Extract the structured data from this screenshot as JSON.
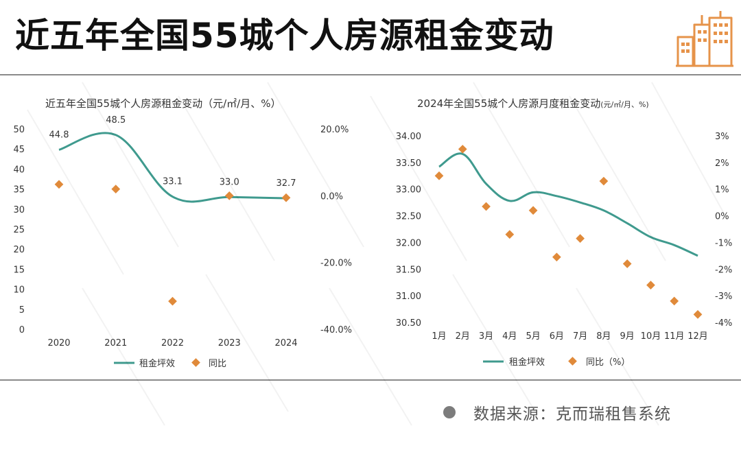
{
  "header": {
    "title": "近五年全国55城个人房源租金变动",
    "icon": "building-icon"
  },
  "colors": {
    "line": "#3f9a8e",
    "marker": "#e08a3a",
    "axis_text": "#333333",
    "icon": "#e6934a"
  },
  "chart_data": [
    {
      "type": "line",
      "title": "近五年全国55城个人房源租金变动（元/㎡/月、%）",
      "categories": [
        "2020",
        "2021",
        "2022",
        "2023",
        "2024"
      ],
      "series": [
        {
          "name": "租金坪效",
          "axis": "left",
          "values": [
            44.8,
            48.5,
            33.1,
            33.0,
            32.7
          ],
          "labels": [
            "44.8",
            "48.5",
            "33.1",
            "33.0",
            "32.7"
          ]
        },
        {
          "name": "同比",
          "axis": "right",
          "style": "marker",
          "values": [
            3.4,
            2.0,
            -31.6,
            0.0,
            -0.6
          ]
        }
      ],
      "ylim": [
        0,
        50
      ],
      "y_ticks": [
        "50",
        "45",
        "40",
        "35",
        "30",
        "25",
        "20",
        "15",
        "10",
        "5",
        "0"
      ],
      "y2lim": [
        -40,
        20
      ],
      "y2_ticks": [
        "20.0%",
        "0.0%",
        "-20.0%",
        "-40.0%"
      ],
      "legend": {
        "position": "bottom",
        "items": [
          "租金坪效",
          "同比"
        ]
      },
      "grid": false
    },
    {
      "type": "line",
      "title": "2024年全国55城个人房源月度租金变动",
      "title_unit": "(元/㎡/月、%)",
      "categories": [
        "1月",
        "2月",
        "3月",
        "4月",
        "5月",
        "6月",
        "7月",
        "8月",
        "9月",
        "10月",
        "11月",
        "12月"
      ],
      "series": [
        {
          "name": "租金坪效",
          "axis": "left",
          "values": [
            33.42,
            33.66,
            33.1,
            32.78,
            32.94,
            32.87,
            32.75,
            32.6,
            32.36,
            32.1,
            31.95,
            31.75
          ]
        },
        {
          "name": "同比（%）",
          "axis": "right",
          "style": "marker",
          "values": [
            1.5,
            2.5,
            0.35,
            -0.7,
            0.2,
            -1.55,
            -0.85,
            1.3,
            -1.8,
            -2.6,
            -3.2,
            -3.7
          ]
        }
      ],
      "ylim": [
        30.5,
        34.0
      ],
      "y_ticks": [
        "34.00",
        "33.50",
        "33.00",
        "32.50",
        "32.00",
        "31.50",
        "31.00",
        "30.50"
      ],
      "y2lim": [
        -4,
        3
      ],
      "y2_ticks": [
        "3%",
        "2%",
        "1%",
        "0%",
        "-1%",
        "-2%",
        "-3%",
        "-4%"
      ],
      "legend": {
        "position": "bottom",
        "items": [
          "租金坪效",
          "同比（%）"
        ]
      },
      "grid": false
    }
  ],
  "footer": {
    "source": "数据来源：克而瑞租售系统"
  }
}
